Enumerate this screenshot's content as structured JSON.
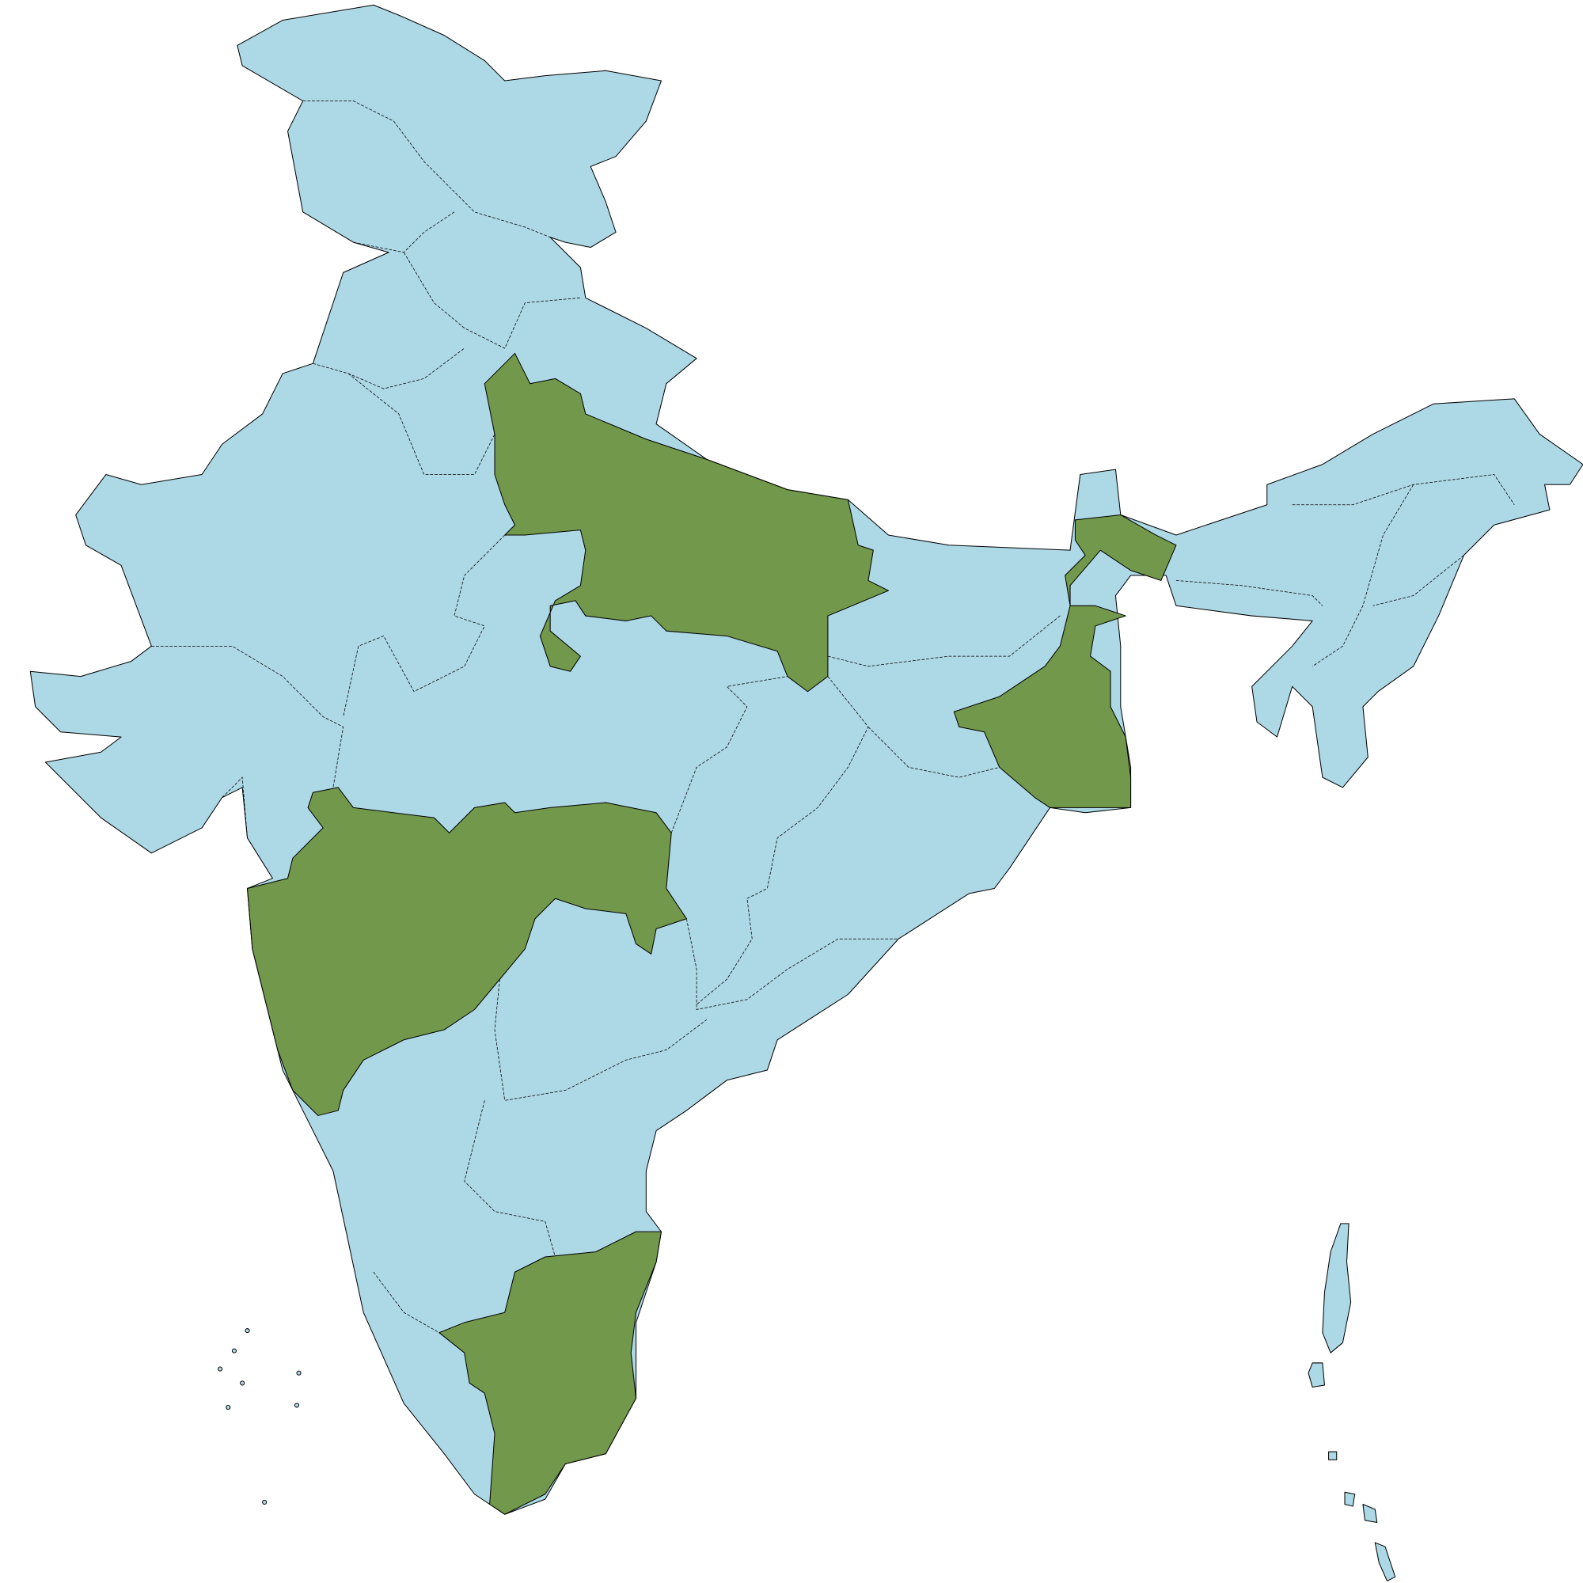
{
  "map": {
    "colors": {
      "base_region": "#ADD8E6",
      "highlighted_region": "#72984B",
      "border": "#000000",
      "background": "#FFFFFF"
    }
  }
}
